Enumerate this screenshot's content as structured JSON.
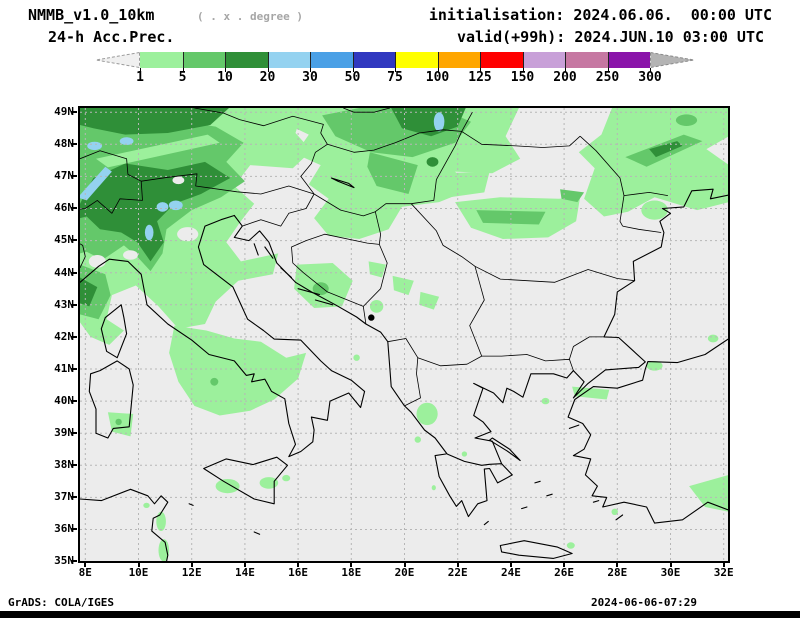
{
  "header": {
    "model": "NMMB_v1.0_10km",
    "grid_note": "( . x . degree )",
    "product": "24-h Acc.Prec.",
    "init": "initialisation: 2024.06.06.  00:00 UTC",
    "valid": "valid(+99h): 2024.JUN.10 03:00 UTC"
  },
  "colorbar": {
    "levels": [
      "1",
      "5",
      "10",
      "20",
      "30",
      "50",
      "75",
      "100",
      "125",
      "150",
      "200",
      "250",
      "300"
    ],
    "colors": [
      "#9cf09c",
      "#64c86a",
      "#2f8f38",
      "#94d2f0",
      "#4aa0e6",
      "#3038c0",
      "#ffff00",
      "#ffa600",
      "#ff0000",
      "#c8a0d8",
      "#c678a2",
      "#8a14aa"
    ],
    "left_arrow_fill": "#f0f0f0",
    "right_arrow_fill": "#b4b4b4"
  },
  "map": {
    "background": "#ececec",
    "y_labels": [
      "49N",
      "48N",
      "47N",
      "46N",
      "45N",
      "44N",
      "43N",
      "42N",
      "41N",
      "40N",
      "39N",
      "38N",
      "37N",
      "36N",
      "35N"
    ],
    "x_labels": [
      "8E",
      "10E",
      "12E",
      "14E",
      "16E",
      "18E",
      "20E",
      "22E",
      "24E",
      "26E",
      "28E",
      "30E",
      "32E"
    ]
  },
  "footer": {
    "left": "GrADS: COLA/IGES",
    "right": "2024-06-06-07:29"
  }
}
